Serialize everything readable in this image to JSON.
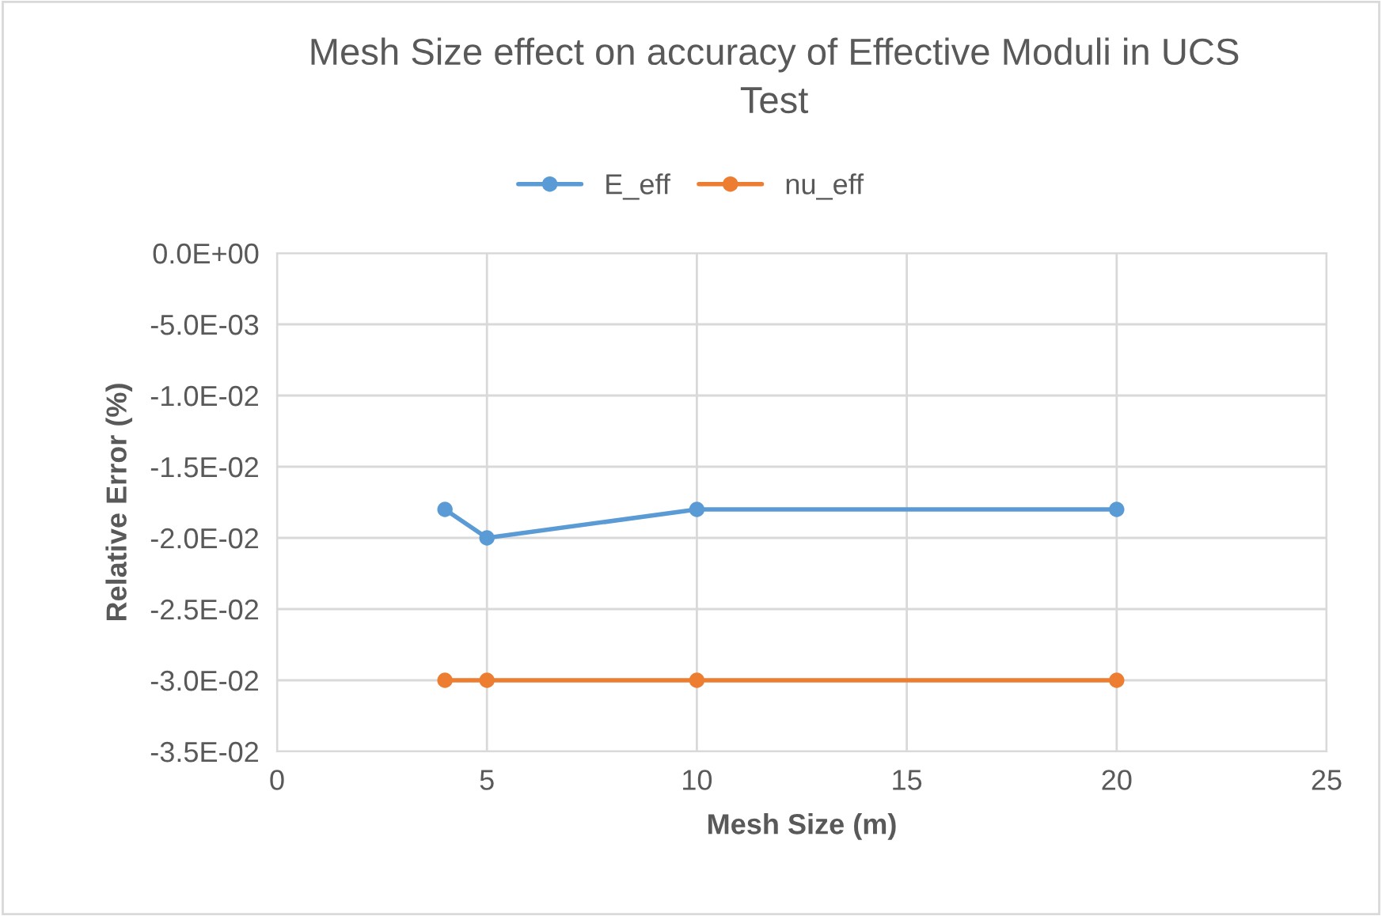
{
  "chart_data": {
    "type": "line",
    "title": "Mesh Size effect on accuracy of Effective Moduli in UCS\nTest",
    "xlabel": "Mesh Size (m)",
    "ylabel": "Relative Error (%)",
    "x": [
      4,
      5,
      10,
      20
    ],
    "series": [
      {
        "name": "E_eff",
        "color": "#5b9bd5",
        "values": [
          -0.018,
          -0.02,
          -0.018,
          -0.018
        ]
      },
      {
        "name": "nu_eff",
        "color": "#ed7d31",
        "values": [
          -0.03,
          -0.03,
          -0.03,
          -0.03
        ]
      }
    ],
    "xlim": [
      0,
      25
    ],
    "xticks": [
      0,
      5,
      10,
      15,
      20,
      25
    ],
    "ylim": [
      -0.035,
      0
    ],
    "yticks": [
      {
        "value": -0.035,
        "label": "-3.5E-02"
      },
      {
        "value": -0.03,
        "label": "-3.0E-02"
      },
      {
        "value": -0.025,
        "label": "-2.5E-02"
      },
      {
        "value": -0.02,
        "label": "-2.0E-02"
      },
      {
        "value": -0.015,
        "label": "-1.5E-02"
      },
      {
        "value": -0.01,
        "label": "-1.0E-02"
      },
      {
        "value": -0.005,
        "label": "-5.0E-03"
      },
      {
        "value": 0,
        "label": "0.0E+00"
      }
    ],
    "grid": true,
    "legend": "top",
    "marker": "circle",
    "line_style": "solid"
  }
}
